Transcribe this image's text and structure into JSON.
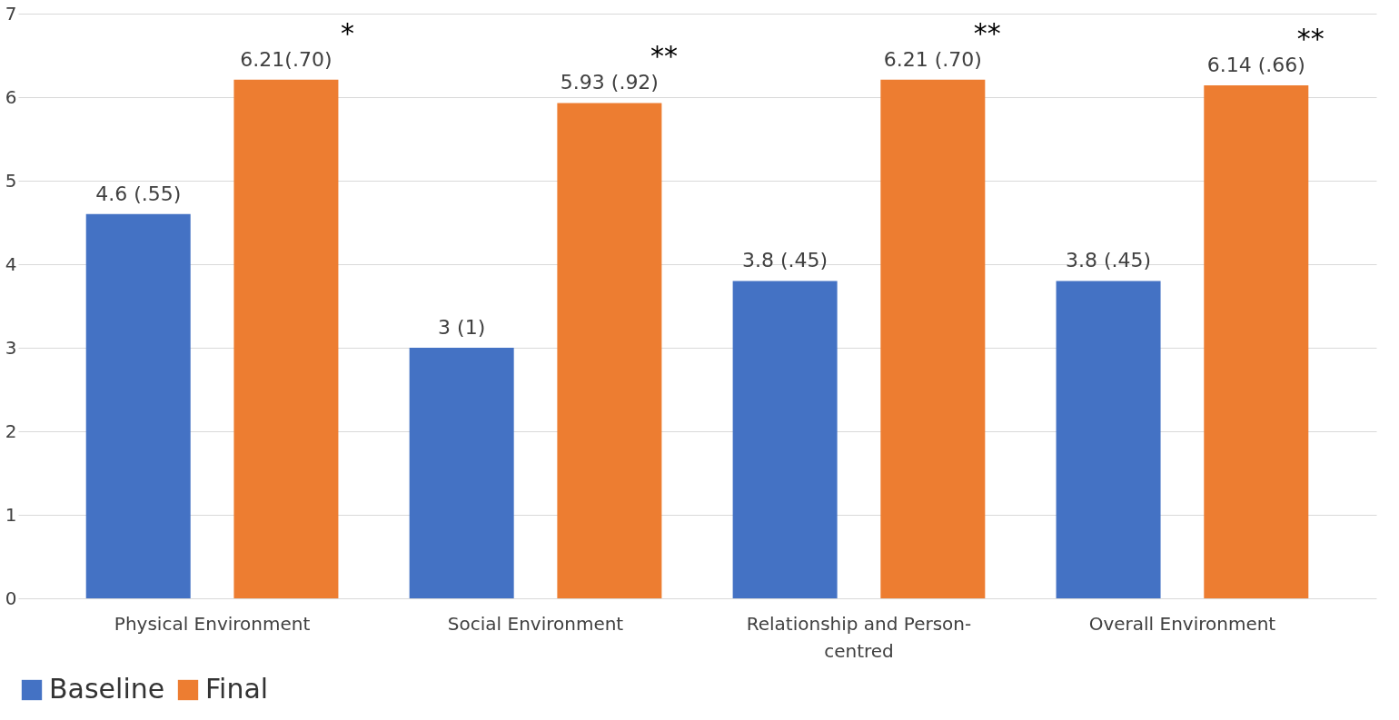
{
  "chart_data": {
    "type": "bar",
    "categories": [
      "Physical Environment",
      "Social Environment",
      "Relationship and Person-centred",
      "Overall Environment"
    ],
    "series": [
      {
        "name": "Baseline",
        "color": "#4472c4",
        "values": [
          4.6,
          3,
          3.8,
          3.8
        ],
        "value_labels": [
          "4.6 (.55)",
          "3 (1)",
          "3.8 (.45)",
          "3.8 (.45)"
        ]
      },
      {
        "name": "Final",
        "color": "#ed7d31",
        "values": [
          6.21,
          5.93,
          6.21,
          6.14
        ],
        "value_labels": [
          "6.21(.70)",
          "5.93 (.92)",
          "6.21 (.70)",
          "6.14 (.66)"
        ]
      }
    ],
    "annotations": [
      "*",
      "**",
      "**",
      "**"
    ],
    "ylim": [
      0,
      7
    ],
    "yticks": [
      0,
      1,
      2,
      3,
      4,
      5,
      6,
      7
    ],
    "grid": "y",
    "legend": "bottom"
  }
}
